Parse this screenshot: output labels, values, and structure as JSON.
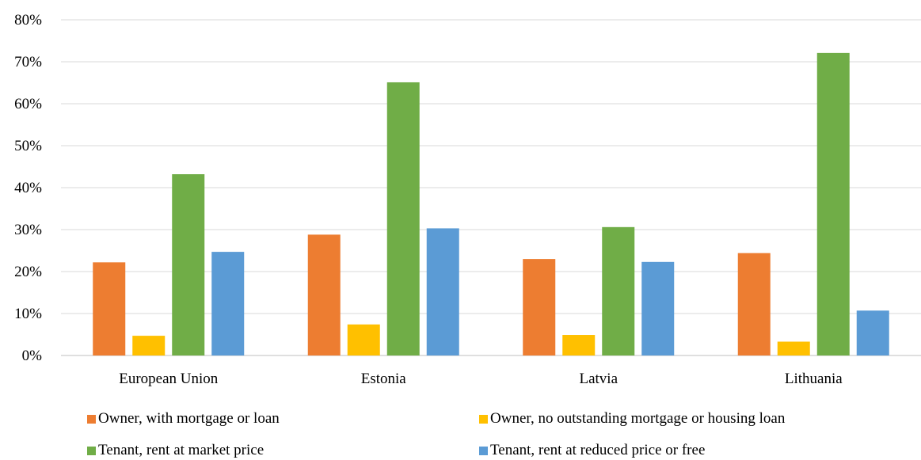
{
  "chart_data": {
    "type": "bar",
    "title": "",
    "xlabel": "",
    "ylabel": "",
    "ylim": [
      0,
      80
    ],
    "y_ticks": [
      "0%",
      "10%",
      "20%",
      "30%",
      "40%",
      "50%",
      "60%",
      "70%",
      "80%"
    ],
    "grid": "horizontal",
    "legend_position": "bottom",
    "categories": [
      "European Union",
      "Estonia",
      "Latvia",
      "Lithuania"
    ],
    "series": [
      {
        "name": "Owner, with mortgage or loan",
        "color": "#ED7D31",
        "values": [
          22.2,
          28.8,
          23.0,
          24.4
        ]
      },
      {
        "name": "Owner, no outstanding mortgage or housing loan",
        "color": "#FFC000",
        "values": [
          4.7,
          7.4,
          4.9,
          3.3
        ]
      },
      {
        "name": "Tenant, rent at market price",
        "color": "#70AD47",
        "values": [
          43.2,
          65.1,
          30.6,
          72.1
        ]
      },
      {
        "name": "Tenant, rent at reduced price or free",
        "color": "#5B9BD5",
        "values": [
          24.7,
          30.3,
          22.3,
          10.7
        ]
      }
    ]
  }
}
